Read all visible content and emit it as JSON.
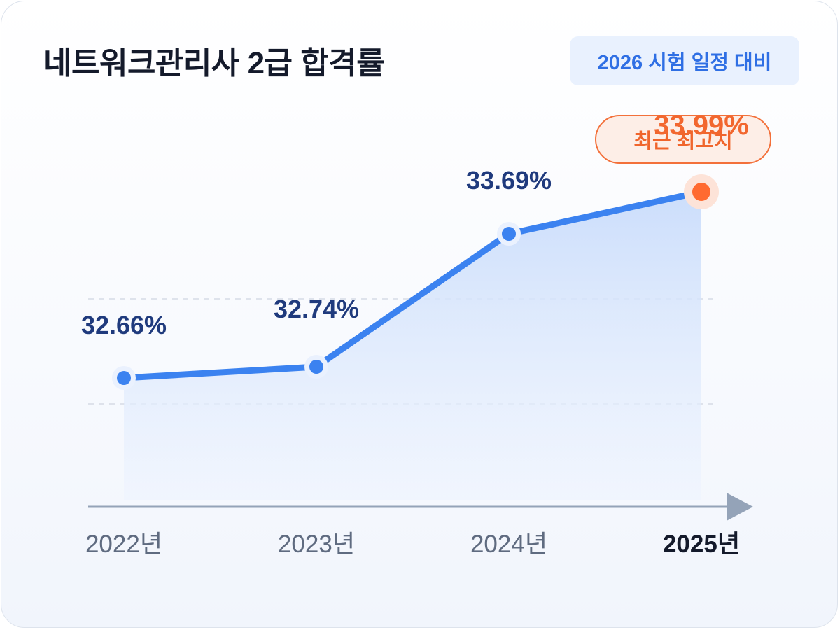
{
  "header": {
    "title": "네트워크관리사 2급 합격률",
    "badge": "2026 시험 일정 대비"
  },
  "highlight_pill": "최근 최고치",
  "colors": {
    "line": "#3b82f0",
    "highlight": "#ff6a30",
    "value_label": "#1f3a7d",
    "highlight_label": "#f2672f",
    "axis": "#94a3b8",
    "area_top": "#cfe0fb"
  },
  "chart_data": {
    "type": "area",
    "title": "네트워크관리사 2급 합격률",
    "categories": [
      "2022년",
      "2023년",
      "2024년",
      "2025년"
    ],
    "values": [
      32.66,
      32.74,
      33.69,
      33.99
    ],
    "value_labels": [
      "32.66%",
      "32.74%",
      "33.69%",
      "33.99%"
    ],
    "highlight_index": 3,
    "ylim": [
      31.5,
      34.5
    ],
    "xlabel": "",
    "ylabel": "",
    "grid": "dashed horizontal",
    "legend": "none"
  }
}
